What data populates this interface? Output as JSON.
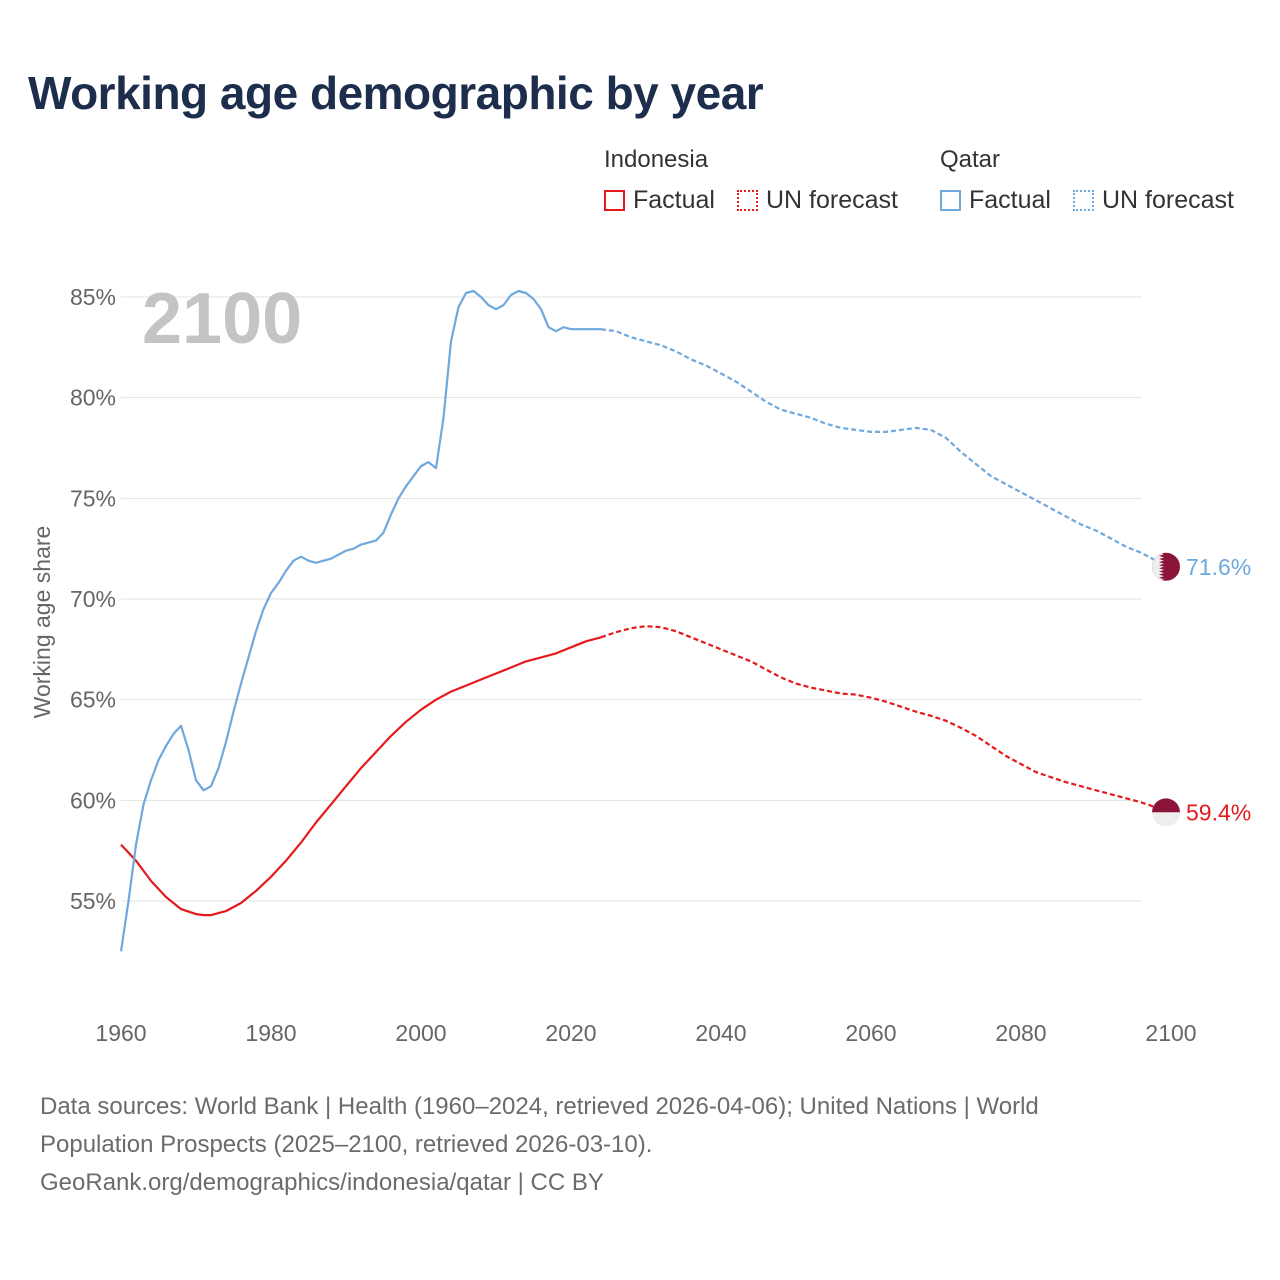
{
  "title": "Working age demographic by year",
  "legend": {
    "groups": [
      {
        "country": "Indonesia",
        "factual_label": "Factual",
        "forecast_label": "UN forecast",
        "color": "#e41a1c"
      },
      {
        "country": "Qatar",
        "factual_label": "Factual",
        "forecast_label": "UN forecast",
        "color": "#6fa8dc"
      }
    ]
  },
  "footer": {
    "line1": "Data sources: World Bank | Health (1960–2024, retrieved 2026-04-06); United Nations | World",
    "line2": "Population Prospects (2025–2100, retrieved 2026-03-10).",
    "line3": "GeoRank.org/demographics/indonesia/qatar | CC BY"
  },
  "chart_data": {
    "type": "line",
    "title": "Working age demographic by year",
    "year_watermark": "2100",
    "ylabel": "Working age share",
    "xlabel": "",
    "xlim": [
      1960,
      2100
    ],
    "ylim": [
      50.5,
      86
    ],
    "x_ticks": [
      1960,
      1980,
      2000,
      2020,
      2040,
      2060,
      2080,
      2100
    ],
    "y_ticks": [
      55,
      60,
      65,
      70,
      75,
      80,
      85
    ],
    "y_tick_labels": [
      "55%",
      "60%",
      "65%",
      "70%",
      "75%",
      "80%",
      "85%"
    ],
    "factual_end_year": 2024,
    "series": [
      {
        "name": "Indonesia",
        "color": "#e41a1c",
        "end_label": "59.4%",
        "points": [
          [
            1960,
            57.8
          ],
          [
            1962,
            57.0
          ],
          [
            1964,
            56.0
          ],
          [
            1966,
            55.2
          ],
          [
            1968,
            54.6
          ],
          [
            1970,
            54.35
          ],
          [
            1971,
            54.3
          ],
          [
            1972,
            54.3
          ],
          [
            1974,
            54.5
          ],
          [
            1976,
            54.9
          ],
          [
            1978,
            55.5
          ],
          [
            1980,
            56.2
          ],
          [
            1982,
            57.0
          ],
          [
            1984,
            57.9
          ],
          [
            1986,
            58.9
          ],
          [
            1988,
            59.8
          ],
          [
            1990,
            60.7
          ],
          [
            1992,
            61.6
          ],
          [
            1994,
            62.4
          ],
          [
            1996,
            63.2
          ],
          [
            1998,
            63.9
          ],
          [
            2000,
            64.5
          ],
          [
            2002,
            65.0
          ],
          [
            2004,
            65.4
          ],
          [
            2006,
            65.7
          ],
          [
            2008,
            66.0
          ],
          [
            2010,
            66.3
          ],
          [
            2012,
            66.6
          ],
          [
            2014,
            66.9
          ],
          [
            2016,
            67.1
          ],
          [
            2018,
            67.3
          ],
          [
            2020,
            67.6
          ],
          [
            2022,
            67.9
          ],
          [
            2024,
            68.1
          ],
          [
            2026,
            68.35
          ],
          [
            2028,
            68.55
          ],
          [
            2030,
            68.65
          ],
          [
            2032,
            68.6
          ],
          [
            2034,
            68.4
          ],
          [
            2036,
            68.1
          ],
          [
            2038,
            67.8
          ],
          [
            2040,
            67.5
          ],
          [
            2042,
            67.2
          ],
          [
            2044,
            66.9
          ],
          [
            2046,
            66.5
          ],
          [
            2048,
            66.1
          ],
          [
            2050,
            65.8
          ],
          [
            2052,
            65.6
          ],
          [
            2054,
            65.45
          ],
          [
            2056,
            65.3
          ],
          [
            2058,
            65.25
          ],
          [
            2060,
            65.1
          ],
          [
            2062,
            64.9
          ],
          [
            2064,
            64.65
          ],
          [
            2066,
            64.4
          ],
          [
            2068,
            64.2
          ],
          [
            2070,
            63.95
          ],
          [
            2072,
            63.6
          ],
          [
            2074,
            63.2
          ],
          [
            2076,
            62.7
          ],
          [
            2078,
            62.2
          ],
          [
            2080,
            61.8
          ],
          [
            2082,
            61.4
          ],
          [
            2084,
            61.15
          ],
          [
            2086,
            60.9
          ],
          [
            2088,
            60.7
          ],
          [
            2090,
            60.5
          ],
          [
            2092,
            60.3
          ],
          [
            2094,
            60.1
          ],
          [
            2096,
            59.9
          ],
          [
            2098,
            59.65
          ],
          [
            2100,
            59.4
          ]
        ]
      },
      {
        "name": "Qatar",
        "color": "#6fa8dc",
        "end_label": "71.6%",
        "points": [
          [
            1960,
            52.5
          ],
          [
            1961,
            55.0
          ],
          [
            1962,
            57.8
          ],
          [
            1963,
            59.8
          ],
          [
            1964,
            61.0
          ],
          [
            1965,
            62.0
          ],
          [
            1966,
            62.7
          ],
          [
            1967,
            63.3
          ],
          [
            1968,
            63.7
          ],
          [
            1969,
            62.5
          ],
          [
            1970,
            61.0
          ],
          [
            1971,
            60.5
          ],
          [
            1972,
            60.7
          ],
          [
            1973,
            61.6
          ],
          [
            1974,
            62.9
          ],
          [
            1975,
            64.4
          ],
          [
            1976,
            65.8
          ],
          [
            1977,
            67.1
          ],
          [
            1978,
            68.4
          ],
          [
            1979,
            69.5
          ],
          [
            1980,
            70.3
          ],
          [
            1981,
            70.8
          ],
          [
            1982,
            71.4
          ],
          [
            1983,
            71.9
          ],
          [
            1984,
            72.1
          ],
          [
            1985,
            71.9
          ],
          [
            1986,
            71.8
          ],
          [
            1987,
            71.9
          ],
          [
            1988,
            72.0
          ],
          [
            1989,
            72.2
          ],
          [
            1990,
            72.4
          ],
          [
            1991,
            72.5
          ],
          [
            1992,
            72.7
          ],
          [
            1993,
            72.8
          ],
          [
            1994,
            72.9
          ],
          [
            1995,
            73.3
          ],
          [
            1996,
            74.2
          ],
          [
            1997,
            75.0
          ],
          [
            1998,
            75.6
          ],
          [
            1999,
            76.1
          ],
          [
            2000,
            76.6
          ],
          [
            2001,
            76.8
          ],
          [
            2002,
            76.5
          ],
          [
            2003,
            79.0
          ],
          [
            2004,
            82.8
          ],
          [
            2005,
            84.5
          ],
          [
            2006,
            85.2
          ],
          [
            2007,
            85.3
          ],
          [
            2008,
            85.0
          ],
          [
            2009,
            84.6
          ],
          [
            2010,
            84.4
          ],
          [
            2011,
            84.6
          ],
          [
            2012,
            85.1
          ],
          [
            2013,
            85.3
          ],
          [
            2014,
            85.2
          ],
          [
            2015,
            84.9
          ],
          [
            2016,
            84.4
          ],
          [
            2017,
            83.5
          ],
          [
            2018,
            83.3
          ],
          [
            2019,
            83.5
          ],
          [
            2020,
            83.4
          ],
          [
            2022,
            83.4
          ],
          [
            2024,
            83.4
          ],
          [
            2026,
            83.3
          ],
          [
            2028,
            83.0
          ],
          [
            2030,
            82.8
          ],
          [
            2032,
            82.6
          ],
          [
            2034,
            82.3
          ],
          [
            2036,
            81.9
          ],
          [
            2038,
            81.6
          ],
          [
            2040,
            81.2
          ],
          [
            2042,
            80.8
          ],
          [
            2044,
            80.3
          ],
          [
            2046,
            79.8
          ],
          [
            2048,
            79.4
          ],
          [
            2050,
            79.2
          ],
          [
            2052,
            79.0
          ],
          [
            2054,
            78.7
          ],
          [
            2056,
            78.5
          ],
          [
            2058,
            78.4
          ],
          [
            2060,
            78.3
          ],
          [
            2062,
            78.3
          ],
          [
            2064,
            78.4
          ],
          [
            2066,
            78.5
          ],
          [
            2068,
            78.4
          ],
          [
            2070,
            78.0
          ],
          [
            2072,
            77.3
          ],
          [
            2074,
            76.7
          ],
          [
            2076,
            76.1
          ],
          [
            2078,
            75.7
          ],
          [
            2080,
            75.3
          ],
          [
            2082,
            74.9
          ],
          [
            2084,
            74.5
          ],
          [
            2086,
            74.1
          ],
          [
            2088,
            73.7
          ],
          [
            2090,
            73.4
          ],
          [
            2092,
            73.0
          ],
          [
            2094,
            72.6
          ],
          [
            2096,
            72.3
          ],
          [
            2098,
            71.9
          ],
          [
            2100,
            71.6
          ]
        ]
      }
    ]
  }
}
